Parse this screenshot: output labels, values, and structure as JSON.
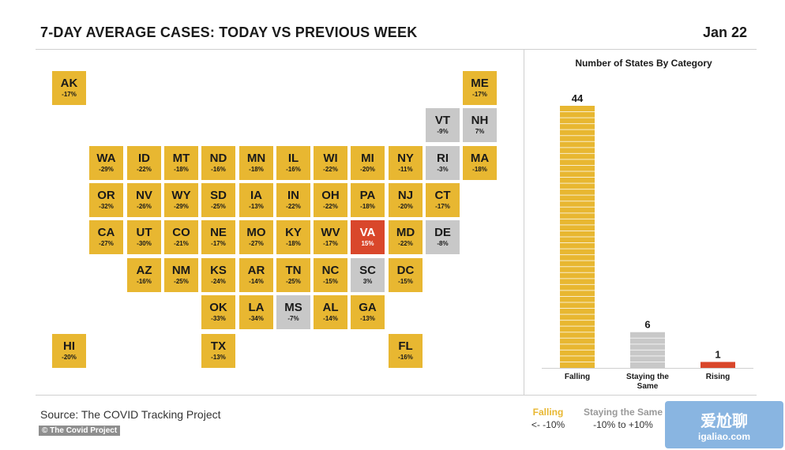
{
  "header": {
    "title": "7-DAY AVERAGE CASES: TODAY VS PREVIOUS WEEK",
    "date": "Jan 22"
  },
  "colors": {
    "falling": "#e8b731",
    "same": "#c8c8c8",
    "rising": "#d9472b",
    "falling_border": "#ffffff"
  },
  "chart_data": [
    {
      "type": "tile-map",
      "title": "7-DAY AVERAGE CASES: TODAY VS PREVIOUS WEEK",
      "states": [
        {
          "abbr": "AK",
          "change": "-17%",
          "category": "falling",
          "row": 0,
          "col": 0
        },
        {
          "abbr": "ME",
          "change": "-17%",
          "category": "falling",
          "row": 0,
          "col": 11
        },
        {
          "abbr": "VT",
          "change": "-9%",
          "category": "same",
          "row": 1,
          "col": 10
        },
        {
          "abbr": "NH",
          "change": "7%",
          "category": "same",
          "row": 1,
          "col": 11
        },
        {
          "abbr": "WA",
          "change": "-29%",
          "category": "falling",
          "row": 2,
          "col": 1
        },
        {
          "abbr": "ID",
          "change": "-22%",
          "category": "falling",
          "row": 2,
          "col": 2
        },
        {
          "abbr": "MT",
          "change": "-18%",
          "category": "falling",
          "row": 2,
          "col": 3
        },
        {
          "abbr": "ND",
          "change": "-16%",
          "category": "falling",
          "row": 2,
          "col": 4
        },
        {
          "abbr": "MN",
          "change": "-18%",
          "category": "falling",
          "row": 2,
          "col": 5
        },
        {
          "abbr": "IL",
          "change": "-16%",
          "category": "falling",
          "row": 2,
          "col": 6
        },
        {
          "abbr": "WI",
          "change": "-22%",
          "category": "falling",
          "row": 2,
          "col": 7
        },
        {
          "abbr": "MI",
          "change": "-20%",
          "category": "falling",
          "row": 2,
          "col": 8
        },
        {
          "abbr": "NY",
          "change": "-11%",
          "category": "falling",
          "row": 2,
          "col": 9
        },
        {
          "abbr": "RI",
          "change": "-3%",
          "category": "same",
          "row": 2,
          "col": 10
        },
        {
          "abbr": "MA",
          "change": "-18%",
          "category": "falling",
          "row": 2,
          "col": 11
        },
        {
          "abbr": "OR",
          "change": "-32%",
          "category": "falling",
          "row": 3,
          "col": 1
        },
        {
          "abbr": "NV",
          "change": "-26%",
          "category": "falling",
          "row": 3,
          "col": 2
        },
        {
          "abbr": "WY",
          "change": "-29%",
          "category": "falling",
          "row": 3,
          "col": 3
        },
        {
          "abbr": "SD",
          "change": "-25%",
          "category": "falling",
          "row": 3,
          "col": 4
        },
        {
          "abbr": "IA",
          "change": "-13%",
          "category": "falling",
          "row": 3,
          "col": 5
        },
        {
          "abbr": "IN",
          "change": "-22%",
          "category": "falling",
          "row": 3,
          "col": 6
        },
        {
          "abbr": "OH",
          "change": "-22%",
          "category": "falling",
          "row": 3,
          "col": 7
        },
        {
          "abbr": "PA",
          "change": "-18%",
          "category": "falling",
          "row": 3,
          "col": 8
        },
        {
          "abbr": "NJ",
          "change": "-20%",
          "category": "falling",
          "row": 3,
          "col": 9
        },
        {
          "abbr": "CT",
          "change": "-17%",
          "category": "falling",
          "row": 3,
          "col": 10
        },
        {
          "abbr": "CA",
          "change": "-27%",
          "category": "falling",
          "row": 4,
          "col": 1
        },
        {
          "abbr": "UT",
          "change": "-30%",
          "category": "falling",
          "row": 4,
          "col": 2
        },
        {
          "abbr": "CO",
          "change": "-21%",
          "category": "falling",
          "row": 4,
          "col": 3
        },
        {
          "abbr": "NE",
          "change": "-17%",
          "category": "falling",
          "row": 4,
          "col": 4
        },
        {
          "abbr": "MO",
          "change": "-27%",
          "category": "falling",
          "row": 4,
          "col": 5
        },
        {
          "abbr": "KY",
          "change": "-18%",
          "category": "falling",
          "row": 4,
          "col": 6
        },
        {
          "abbr": "WV",
          "change": "-17%",
          "category": "falling",
          "row": 4,
          "col": 7
        },
        {
          "abbr": "VA",
          "change": "15%",
          "category": "rising",
          "row": 4,
          "col": 8
        },
        {
          "abbr": "MD",
          "change": "-22%",
          "category": "falling",
          "row": 4,
          "col": 9
        },
        {
          "abbr": "DE",
          "change": "-8%",
          "category": "same",
          "row": 4,
          "col": 10
        },
        {
          "abbr": "AZ",
          "change": "-16%",
          "category": "falling",
          "row": 5,
          "col": 2
        },
        {
          "abbr": "NM",
          "change": "-25%",
          "category": "falling",
          "row": 5,
          "col": 3
        },
        {
          "abbr": "KS",
          "change": "-24%",
          "category": "falling",
          "row": 5,
          "col": 4
        },
        {
          "abbr": "AR",
          "change": "-14%",
          "category": "falling",
          "row": 5,
          "col": 5
        },
        {
          "abbr": "TN",
          "change": "-25%",
          "category": "falling",
          "row": 5,
          "col": 6
        },
        {
          "abbr": "NC",
          "change": "-15%",
          "category": "falling",
          "row": 5,
          "col": 7
        },
        {
          "abbr": "SC",
          "change": "3%",
          "category": "same",
          "row": 5,
          "col": 8
        },
        {
          "abbr": "DC",
          "change": "-15%",
          "category": "falling",
          "row": 5,
          "col": 9
        },
        {
          "abbr": "OK",
          "change": "-33%",
          "category": "falling",
          "row": 6,
          "col": 4
        },
        {
          "abbr": "LA",
          "change": "-34%",
          "category": "falling",
          "row": 6,
          "col": 5
        },
        {
          "abbr": "MS",
          "change": "-7%",
          "category": "same",
          "row": 6,
          "col": 6
        },
        {
          "abbr": "AL",
          "change": "-14%",
          "category": "falling",
          "row": 6,
          "col": 7
        },
        {
          "abbr": "GA",
          "change": "-13%",
          "category": "falling",
          "row": 6,
          "col": 8
        },
        {
          "abbr": "HI",
          "change": "-20%",
          "category": "falling",
          "row": 7,
          "col": 0
        },
        {
          "abbr": "TX",
          "change": "-13%",
          "category": "falling",
          "row": 7,
          "col": 4
        },
        {
          "abbr": "FL",
          "change": "-16%",
          "category": "falling",
          "row": 7,
          "col": 9
        }
      ]
    },
    {
      "type": "bar",
      "title": "Number of States By Category",
      "categories": [
        "Falling",
        "Staying the Same",
        "Rising"
      ],
      "values": [
        44,
        6,
        1
      ],
      "colors": [
        "#e8b731",
        "#c8c8c8",
        "#d9472b"
      ],
      "ylim": [
        0,
        44
      ],
      "grid": false
    }
  ],
  "footer": {
    "source": "Source: The COVID Tracking Project",
    "credit": "© The Covid Project",
    "legend": [
      {
        "name": "Falling",
        "range": "<- -10%"
      },
      {
        "name": "Staying the Same",
        "range": "-10% to +10%"
      }
    ],
    "watermark_brand": "爱尬聊",
    "watermark_url": "igaliao.com"
  }
}
